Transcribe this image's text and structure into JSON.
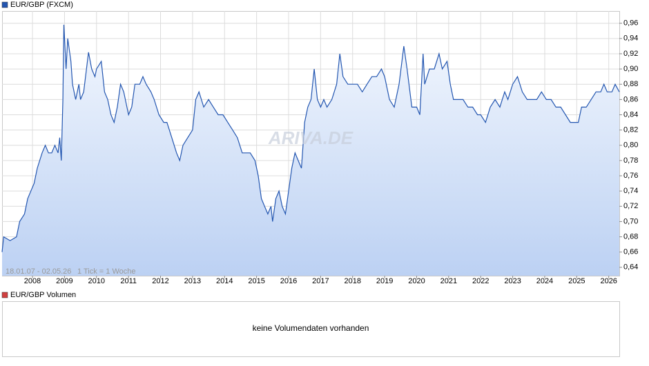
{
  "chart_data": {
    "type": "area",
    "series": [
      {
        "name": "EUR/GBP (FXCM)",
        "color": "#2255b0",
        "values": [
          0.66,
          0.68,
          0.675,
          0.68,
          0.7,
          0.71,
          0.73,
          0.74,
          0.75,
          0.77,
          0.79,
          0.8,
          0.79,
          0.79,
          0.8,
          0.79,
          0.81,
          0.78,
          0.86,
          0.958,
          0.9,
          0.94,
          0.91,
          0.88,
          0.86,
          0.88,
          0.86,
          0.87,
          0.922,
          0.9,
          0.89,
          0.9,
          0.91,
          0.87,
          0.86,
          0.84,
          0.83,
          0.85,
          0.88,
          0.87,
          0.84,
          0.85,
          0.88,
          0.88,
          0.89,
          0.88,
          0.87,
          0.86,
          0.84,
          0.83,
          0.83,
          0.81,
          0.79,
          0.78,
          0.8,
          0.81,
          0.82,
          0.86,
          0.87,
          0.85,
          0.86,
          0.85,
          0.84,
          0.84,
          0.83,
          0.82,
          0.81,
          0.79,
          0.79,
          0.79,
          0.78,
          0.76,
          0.73,
          0.72,
          0.71,
          0.72,
          0.7,
          0.73,
          0.74,
          0.72,
          0.71,
          0.74,
          0.77,
          0.79,
          0.78,
          0.77,
          0.83,
          0.85,
          0.86,
          0.9,
          0.86,
          0.85,
          0.86,
          0.85,
          0.86,
          0.88,
          0.92,
          0.89,
          0.88,
          0.88,
          0.88,
          0.87,
          0.88,
          0.89,
          0.89,
          0.9,
          0.89,
          0.86,
          0.85,
          0.88,
          0.93,
          0.9,
          0.85,
          0.85,
          0.84,
          0.92,
          0.88,
          0.9,
          0.9,
          0.92,
          0.9,
          0.91,
          0.88,
          0.86,
          0.86,
          0.86,
          0.85,
          0.85,
          0.84,
          0.84,
          0.83,
          0.85,
          0.86,
          0.85,
          0.87,
          0.86,
          0.88,
          0.89,
          0.87,
          0.86,
          0.86,
          0.86,
          0.87,
          0.86,
          0.86,
          0.85,
          0.85,
          0.84,
          0.83,
          0.83,
          0.83,
          0.85,
          0.85,
          0.86,
          0.87,
          0.87,
          0.88,
          0.87,
          0.87,
          0.88,
          0.87
        ]
      }
    ],
    "x": [
      2007.05,
      2007.1,
      2007.3,
      2007.5,
      2007.6,
      2007.75,
      2007.85,
      2007.95,
      2008.05,
      2008.15,
      2008.3,
      2008.4,
      2008.5,
      2008.6,
      2008.7,
      2008.8,
      2008.85,
      2008.9,
      2008.95,
      2008.98,
      2009.05,
      2009.1,
      2009.2,
      2009.25,
      2009.35,
      2009.45,
      2009.5,
      2009.6,
      2009.75,
      2009.85,
      2009.95,
      2010.0,
      2010.15,
      2010.25,
      2010.35,
      2010.45,
      2010.55,
      2010.65,
      2010.75,
      2010.85,
      2011.0,
      2011.1,
      2011.2,
      2011.35,
      2011.45,
      2011.55,
      2011.7,
      2011.8,
      2011.95,
      2012.1,
      2012.2,
      2012.35,
      2012.5,
      2012.6,
      2012.7,
      2012.85,
      2013.0,
      2013.1,
      2013.2,
      2013.35,
      2013.5,
      2013.65,
      2013.8,
      2013.95,
      2014.1,
      2014.25,
      2014.4,
      2014.55,
      2014.7,
      2014.8,
      2014.95,
      2015.05,
      2015.15,
      2015.25,
      2015.35,
      2015.45,
      2015.5,
      2015.6,
      2015.7,
      2015.8,
      2015.9,
      2016.0,
      2016.1,
      2016.2,
      2016.3,
      2016.4,
      2016.5,
      2016.6,
      2016.7,
      2016.8,
      2016.9,
      2017.0,
      2017.1,
      2017.2,
      2017.35,
      2017.5,
      2017.6,
      2017.7,
      2017.85,
      2018.0,
      2018.15,
      2018.3,
      2018.45,
      2018.6,
      2018.75,
      2018.9,
      2019.0,
      2019.15,
      2019.3,
      2019.45,
      2019.6,
      2019.7,
      2019.85,
      2020.0,
      2020.1,
      2020.2,
      2020.25,
      2020.4,
      2020.55,
      2020.7,
      2020.8,
      2020.95,
      2021.05,
      2021.15,
      2021.3,
      2021.45,
      2021.6,
      2021.75,
      2021.9,
      2022.0,
      2022.15,
      2022.3,
      2022.45,
      2022.6,
      2022.75,
      2022.85,
      2023.0,
      2023.15,
      2023.3,
      2023.45,
      2023.6,
      2023.75,
      2023.9,
      2024.05,
      2024.2,
      2024.35,
      2024.5,
      2024.65,
      2024.8,
      2024.9,
      2025.05,
      2025.15,
      2025.3,
      2025.45,
      2025.6,
      2025.75,
      2025.85,
      2025.95,
      2026.1,
      2026.2,
      2026.33
    ],
    "xlim": [
      2007.05,
      2026.33
    ],
    "xticks": [
      2008,
      2009,
      2010,
      2011,
      2012,
      2013,
      2014,
      2015,
      2016,
      2017,
      2018,
      2019,
      2020,
      2021,
      2022,
      2023,
      2024,
      2025,
      2026
    ],
    "ylim": [
      0.629,
      0.976
    ],
    "yticks": [
      {
        "value": 0.64,
        "label": "0,64"
      },
      {
        "value": 0.66,
        "label": "0,66"
      },
      {
        "value": 0.68,
        "label": "0,68"
      },
      {
        "value": 0.7,
        "label": "0,70"
      },
      {
        "value": 0.72,
        "label": "0,72"
      },
      {
        "value": 0.74,
        "label": "0,74"
      },
      {
        "value": 0.76,
        "label": "0,76"
      },
      {
        "value": 0.78,
        "label": "0,78"
      },
      {
        "value": 0.8,
        "label": "0,80"
      },
      {
        "value": 0.82,
        "label": "0,82"
      },
      {
        "value": 0.84,
        "label": "0,84"
      },
      {
        "value": 0.86,
        "label": "0,86"
      },
      {
        "value": 0.88,
        "label": "0,88"
      },
      {
        "value": 0.9,
        "label": "0,90"
      },
      {
        "value": 0.92,
        "label": "0,92"
      },
      {
        "value": 0.94,
        "label": "0,94"
      },
      {
        "value": 0.96,
        "label": "0,96"
      }
    ],
    "grid": true,
    "range_info": "18.01.07 - 02.05.26",
    "tick_info": "1 Tick = 1 Woche",
    "watermark": "ARIVA.DE"
  },
  "volume_panel": {
    "legend": "EUR/GBP Volumen",
    "legend_color": "#d04040",
    "message": "keine Volumendaten vorhanden"
  }
}
